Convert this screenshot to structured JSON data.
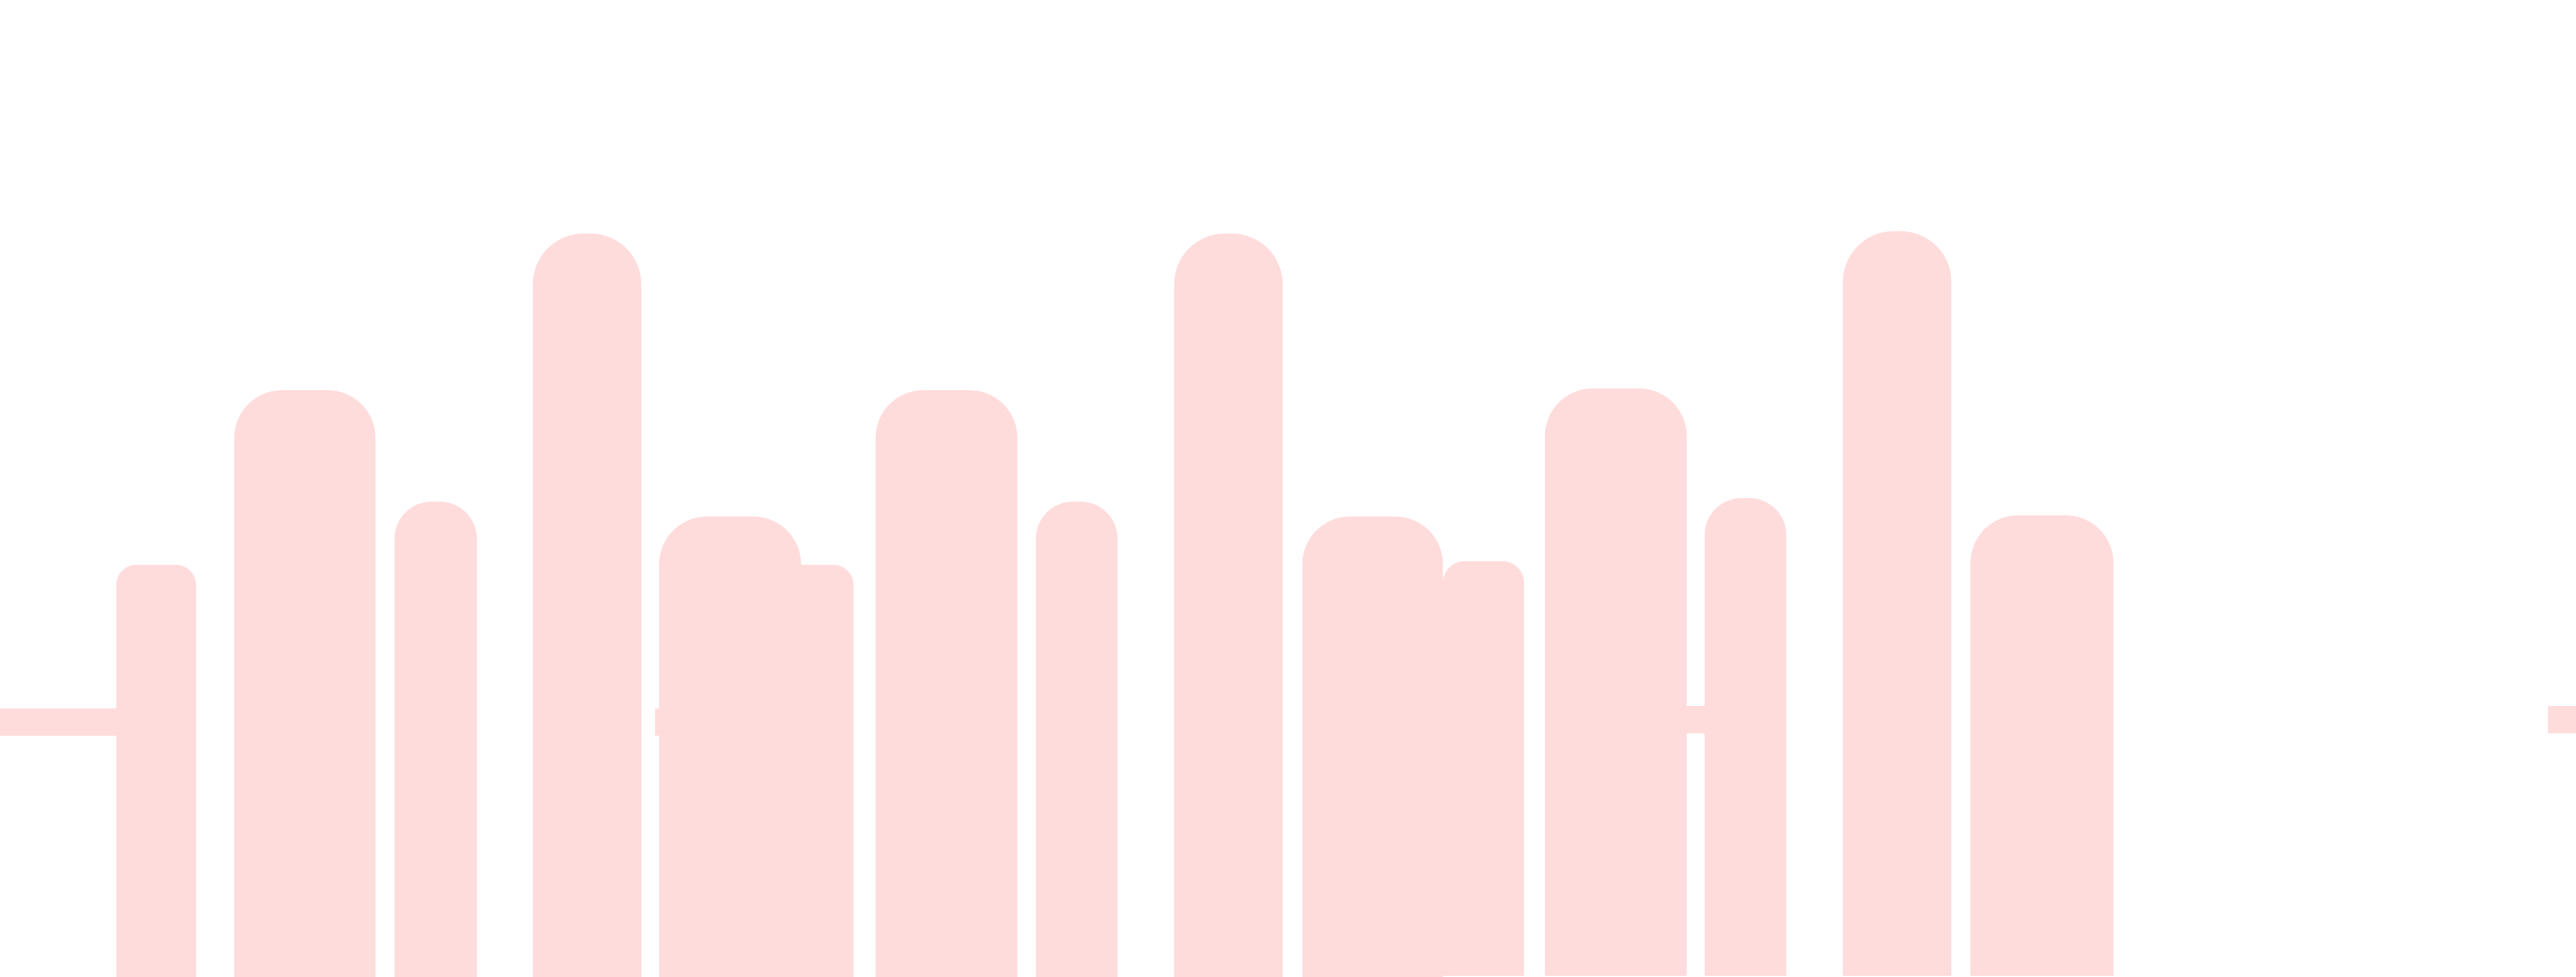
{
  "graphic": {
    "fill_color": "#ffdcdc",
    "background_color": "#ffffff"
  }
}
